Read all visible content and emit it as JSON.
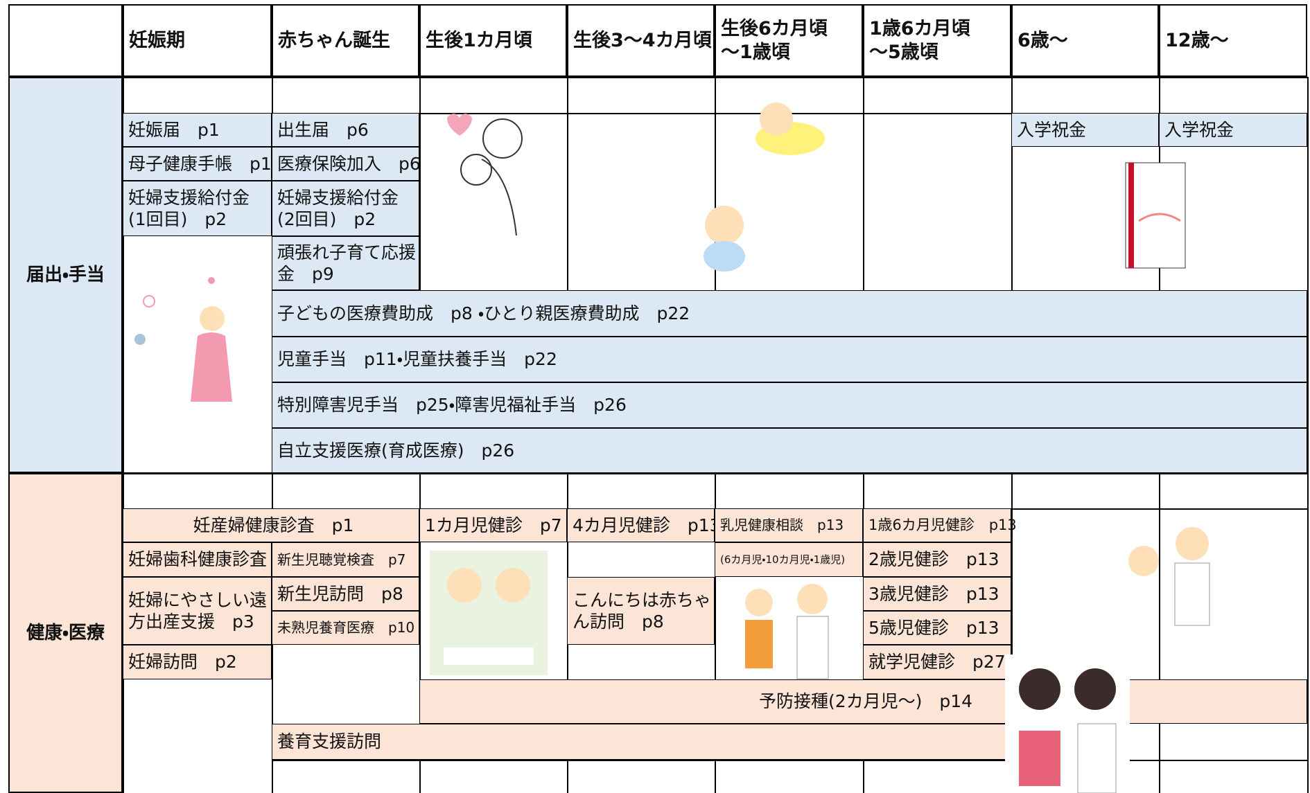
{
  "header": {
    "columns": [
      {
        "lines": [
          "妊娠期"
        ]
      },
      {
        "lines": [
          "赤ちゃん誕生"
        ]
      },
      {
        "lines": [
          "生後1カ月頃"
        ]
      },
      {
        "lines": [
          "生後3～4カ月頃"
        ]
      },
      {
        "lines": [
          "生後6カ月頃",
          "～1歳頃"
        ]
      },
      {
        "lines": [
          "1歳6カ月頃",
          "～5歳頃"
        ]
      },
      {
        "lines": [
          "6歳～"
        ]
      },
      {
        "lines": [
          "12歳～"
        ]
      }
    ]
  },
  "sections": [
    {
      "label": "届出・手当",
      "cells": [
        {
          "lines": [
            "妊娠届　p1"
          ]
        },
        {
          "lines": [
            "母子健康手帳　p1"
          ]
        },
        {
          "lines": [
            "妊婦支援給付金",
            "(1回目)　p2"
          ]
        },
        {
          "lines": [
            "出生届　p6"
          ]
        },
        {
          "lines": [
            "医療保険加入　p6"
          ]
        },
        {
          "lines": [
            "妊婦支援給付金",
            "(2回目)　p2"
          ]
        },
        {
          "lines": [
            "頑張れ子育て応援",
            "金　p9"
          ]
        },
        {
          "lines": [
            "入学祝金"
          ]
        },
        {
          "lines": [
            "入学祝金"
          ]
        },
        {
          "lines": [
            "子どもの医療費助成　p8 ・ひとり親医療費助成　p22"
          ]
        },
        {
          "lines": [
            "児童手当　p11・児童扶養手当　p22"
          ]
        },
        {
          "lines": [
            "特別障害児手当　p25・障害児福祉手当　p26"
          ]
        },
        {
          "lines": [
            "自立支援医療(育成医療)　p26"
          ]
        }
      ]
    },
    {
      "label": "健康・医療",
      "cells": [
        {
          "lines": [
            "妊産婦健康診査　p1"
          ]
        },
        {
          "lines": [
            "妊婦歯科健康診査"
          ]
        },
        {
          "lines": [
            "妊婦にやさしい遠",
            "方出産支援　p3"
          ]
        },
        {
          "lines": [
            "妊婦訪問　p2"
          ]
        },
        {
          "lines": [
            "新生児聴覚検査　p7"
          ]
        },
        {
          "lines": [
            "新生児訪問　p8"
          ]
        },
        {
          "lines": [
            "未熟児養育医療　p10"
          ]
        },
        {
          "lines": [
            "1カ月児健診　p7"
          ]
        },
        {
          "lines": [
            "4カ月児健診　p13"
          ]
        },
        {
          "lines": [
            "こんにちは赤ちゃ",
            "ん訪問　p8"
          ]
        },
        {
          "lines": [
            "乳児健康相談　p13"
          ]
        },
        {
          "lines": [
            "(6カ月児・10カ月児・1歳児)"
          ]
        },
        {
          "lines": [
            "1歳6カ月児健診　p13"
          ]
        },
        {
          "lines": [
            "2歳児健診　p13"
          ]
        },
        {
          "lines": [
            "3歳児健診　p13"
          ]
        },
        {
          "lines": [
            "5歳児健診　p13"
          ]
        },
        {
          "lines": [
            "就学児健診　p27"
          ]
        },
        {
          "lines": [
            "予防接種(2カ月児～)　p14"
          ]
        },
        {
          "lines": [
            "養育支援訪問"
          ]
        }
      ]
    }
  ]
}
